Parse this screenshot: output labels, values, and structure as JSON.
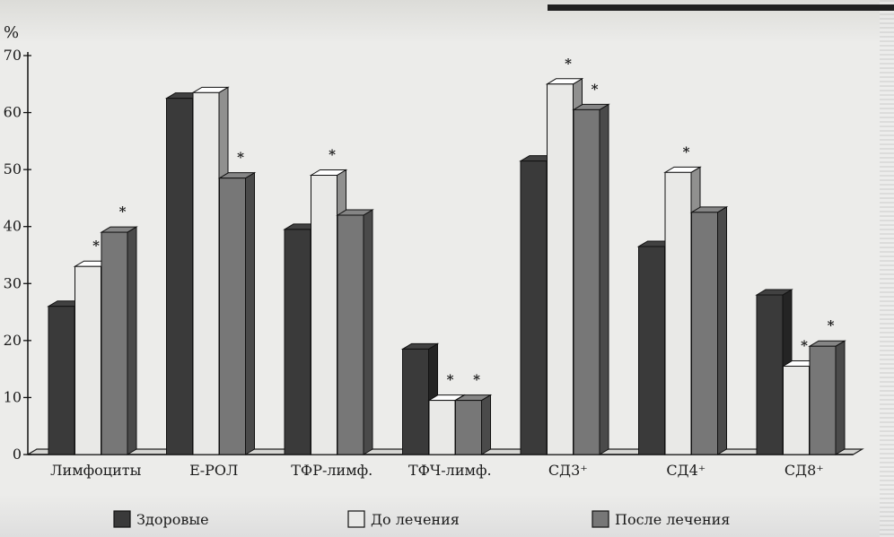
{
  "chart_data": {
    "type": "bar",
    "ylabel": "%",
    "ylim": [
      0,
      70
    ],
    "yticks": [
      0,
      10,
      20,
      30,
      40,
      50,
      60,
      70
    ],
    "grid": false,
    "legend_position": "bottom",
    "categories": [
      "Лимфоциты",
      "Е-РОЛ",
      "ТФР-лимф.",
      "ТФЧ-лимф.",
      "СД3⁺",
      "СД4⁺",
      "СД8⁺"
    ],
    "series": [
      {
        "name": "Здоровые",
        "color": "#3a3a3a",
        "values": [
          26,
          62.5,
          39.5,
          18.5,
          51.5,
          36.5,
          28
        ]
      },
      {
        "name": "До лечения",
        "color": "#e9e9e7",
        "values": [
          33,
          63.5,
          49,
          9.5,
          65,
          49.5,
          15.5
        ]
      },
      {
        "name": "После лечения",
        "color": "#777777",
        "values": [
          39,
          48.5,
          42,
          9.5,
          60.5,
          42.5,
          19
        ]
      }
    ],
    "significance": [
      [
        false,
        true,
        true
      ],
      [
        false,
        false,
        true
      ],
      [
        false,
        true,
        false
      ],
      [
        false,
        true,
        true
      ],
      [
        false,
        true,
        true
      ],
      [
        false,
        true,
        false
      ],
      [
        false,
        true,
        true
      ]
    ],
    "significance_marker": "*"
  }
}
